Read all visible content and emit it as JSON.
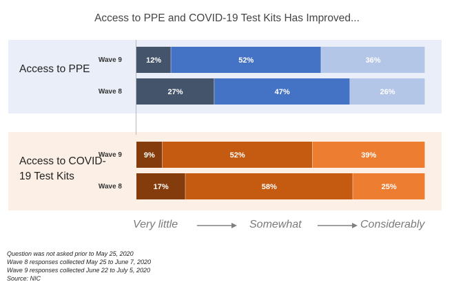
{
  "chart_data": {
    "type": "bar",
    "orientation": "horizontal",
    "stacked": true,
    "title": "Access to PPE and COVID-19 Test Kits Has Improved...",
    "scale_labels": [
      "Very little",
      "Somewhat",
      "Considerably"
    ],
    "groups": [
      {
        "label": "Access to PPE",
        "colors": [
          "#44546a",
          "#4472c4",
          "#b4c6e7"
        ],
        "rows": [
          {
            "label": "Wave 9",
            "values": [
              12,
              52,
              36
            ]
          },
          {
            "label": "Wave 8",
            "values": [
              27,
              47,
              26
            ]
          }
        ]
      },
      {
        "label": "Access to COVID-19 Test Kits",
        "colors": [
          "#843c0c",
          "#c55a11",
          "#ed7d31"
        ],
        "rows": [
          {
            "label": "Wave 9",
            "values": [
              9,
              52,
              39
            ]
          },
          {
            "label": "Wave 8",
            "values": [
              17,
              58,
              25
            ]
          }
        ]
      }
    ],
    "xlim": [
      0,
      100
    ]
  },
  "notes": [
    "Question was not asked prior to May 25, 2020",
    "Wave 8 responses collected May 25 to June 7, 2020",
    "Wave 9 responses collected June 22 to July 5, 2020",
    "Source: NIC"
  ]
}
